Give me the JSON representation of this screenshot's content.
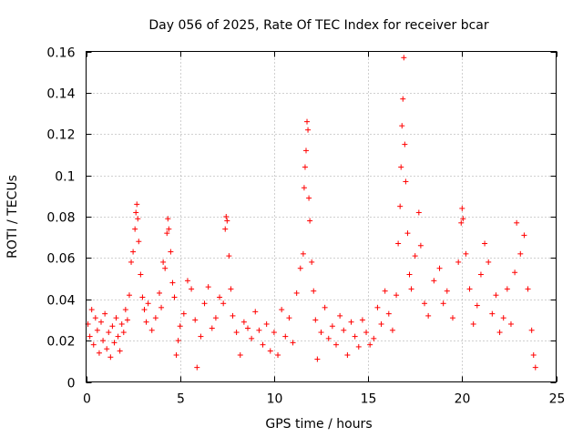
{
  "chart_data": {
    "type": "scatter",
    "title": "Day 056 of 2025, Rate Of TEC Index for receiver bcar",
    "xlabel": "GPS time / hours",
    "ylabel": "ROTI / TECUs",
    "xlim": [
      0,
      25
    ],
    "ylim": [
      0,
      0.16
    ],
    "xticks": [
      0,
      5,
      10,
      15,
      20,
      25
    ],
    "xtick_labels": [
      "0",
      "5",
      "10",
      "15",
      "20",
      "25"
    ],
    "yticks": [
      0,
      0.02,
      0.04,
      0.06,
      0.08,
      0.1,
      0.12,
      0.14,
      0.16
    ],
    "ytick_labels": [
      "0",
      "0.02",
      "0.04",
      "0.06",
      "0.08",
      "0.1",
      "0.12",
      "0.14",
      "0.16"
    ],
    "grid": true,
    "marker": "+",
    "color": "#ff0000",
    "series": [
      {
        "name": "ROTI",
        "points": [
          [
            0.1,
            0.028
          ],
          [
            0.2,
            0.022
          ],
          [
            0.3,
            0.035
          ],
          [
            0.4,
            0.018
          ],
          [
            0.5,
            0.031
          ],
          [
            0.6,
            0.025
          ],
          [
            0.7,
            0.014
          ],
          [
            0.8,
            0.029
          ],
          [
            0.9,
            0.02
          ],
          [
            1.0,
            0.033
          ],
          [
            1.1,
            0.016
          ],
          [
            1.2,
            0.024
          ],
          [
            1.3,
            0.012
          ],
          [
            1.4,
            0.027
          ],
          [
            1.5,
            0.019
          ],
          [
            1.6,
            0.031
          ],
          [
            1.7,
            0.022
          ],
          [
            1.8,
            0.015
          ],
          [
            1.9,
            0.028
          ],
          [
            2.0,
            0.024
          ],
          [
            2.1,
            0.035
          ],
          [
            2.2,
            0.03
          ],
          [
            2.3,
            0.042
          ],
          [
            2.4,
            0.058
          ],
          [
            2.5,
            0.063
          ],
          [
            2.6,
            0.074
          ],
          [
            2.65,
            0.082
          ],
          [
            2.7,
            0.086
          ],
          [
            2.75,
            0.079
          ],
          [
            2.8,
            0.068
          ],
          [
            2.9,
            0.052
          ],
          [
            3.0,
            0.041
          ],
          [
            3.1,
            0.035
          ],
          [
            3.2,
            0.029
          ],
          [
            3.3,
            0.038
          ],
          [
            3.5,
            0.025
          ],
          [
            3.7,
            0.031
          ],
          [
            3.9,
            0.043
          ],
          [
            4.0,
            0.036
          ],
          [
            4.1,
            0.058
          ],
          [
            4.2,
            0.055
          ],
          [
            4.3,
            0.072
          ],
          [
            4.35,
            0.079
          ],
          [
            4.4,
            0.074
          ],
          [
            4.5,
            0.063
          ],
          [
            4.6,
            0.048
          ],
          [
            4.7,
            0.041
          ],
          [
            4.8,
            0.013
          ],
          [
            4.9,
            0.02
          ],
          [
            5.0,
            0.027
          ],
          [
            5.2,
            0.033
          ],
          [
            5.4,
            0.049
          ],
          [
            5.6,
            0.045
          ],
          [
            5.8,
            0.03
          ],
          [
            5.9,
            0.007
          ],
          [
            6.1,
            0.022
          ],
          [
            6.3,
            0.038
          ],
          [
            6.5,
            0.046
          ],
          [
            6.7,
            0.026
          ],
          [
            6.9,
            0.031
          ],
          [
            7.1,
            0.041
          ],
          [
            7.3,
            0.038
          ],
          [
            7.4,
            0.074
          ],
          [
            7.45,
            0.08
          ],
          [
            7.5,
            0.078
          ],
          [
            7.6,
            0.061
          ],
          [
            7.7,
            0.045
          ],
          [
            7.8,
            0.032
          ],
          [
            8.0,
            0.024
          ],
          [
            8.2,
            0.013
          ],
          [
            8.4,
            0.029
          ],
          [
            8.6,
            0.026
          ],
          [
            8.8,
            0.021
          ],
          [
            9.0,
            0.034
          ],
          [
            9.2,
            0.025
          ],
          [
            9.4,
            0.018
          ],
          [
            9.6,
            0.028
          ],
          [
            9.8,
            0.015
          ],
          [
            10.0,
            0.024
          ],
          [
            10.2,
            0.013
          ],
          [
            10.4,
            0.035
          ],
          [
            10.6,
            0.022
          ],
          [
            10.8,
            0.031
          ],
          [
            11.0,
            0.019
          ],
          [
            11.2,
            0.043
          ],
          [
            11.4,
            0.055
          ],
          [
            11.55,
            0.062
          ],
          [
            11.6,
            0.094
          ],
          [
            11.65,
            0.104
          ],
          [
            11.7,
            0.112
          ],
          [
            11.75,
            0.126
          ],
          [
            11.8,
            0.122
          ],
          [
            11.85,
            0.089
          ],
          [
            11.9,
            0.078
          ],
          [
            12.0,
            0.058
          ],
          [
            12.1,
            0.044
          ],
          [
            12.2,
            0.03
          ],
          [
            12.3,
            0.011
          ],
          [
            12.5,
            0.024
          ],
          [
            12.7,
            0.036
          ],
          [
            12.9,
            0.021
          ],
          [
            13.1,
            0.027
          ],
          [
            13.3,
            0.018
          ],
          [
            13.5,
            0.032
          ],
          [
            13.7,
            0.025
          ],
          [
            13.9,
            0.013
          ],
          [
            14.1,
            0.029
          ],
          [
            14.3,
            0.022
          ],
          [
            14.5,
            0.017
          ],
          [
            14.7,
            0.03
          ],
          [
            14.9,
            0.024
          ],
          [
            15.1,
            0.018
          ],
          [
            15.3,
            0.021
          ],
          [
            15.5,
            0.036
          ],
          [
            15.7,
            0.028
          ],
          [
            15.9,
            0.044
          ],
          [
            16.1,
            0.033
          ],
          [
            16.3,
            0.025
          ],
          [
            16.5,
            0.042
          ],
          [
            16.6,
            0.067
          ],
          [
            16.7,
            0.085
          ],
          [
            16.75,
            0.104
          ],
          [
            16.8,
            0.124
          ],
          [
            16.85,
            0.137
          ],
          [
            16.9,
            0.157
          ],
          [
            16.95,
            0.115
          ],
          [
            17.0,
            0.097
          ],
          [
            17.1,
            0.072
          ],
          [
            17.2,
            0.052
          ],
          [
            17.3,
            0.045
          ],
          [
            17.5,
            0.061
          ],
          [
            17.7,
            0.082
          ],
          [
            17.8,
            0.066
          ],
          [
            18.0,
            0.038
          ],
          [
            18.2,
            0.032
          ],
          [
            18.5,
            0.049
          ],
          [
            18.8,
            0.055
          ],
          [
            19.0,
            0.038
          ],
          [
            19.2,
            0.044
          ],
          [
            19.5,
            0.031
          ],
          [
            19.8,
            0.058
          ],
          [
            19.95,
            0.077
          ],
          [
            20.0,
            0.084
          ],
          [
            20.05,
            0.079
          ],
          [
            20.2,
            0.062
          ],
          [
            20.4,
            0.045
          ],
          [
            20.6,
            0.028
          ],
          [
            20.8,
            0.037
          ],
          [
            21.0,
            0.052
          ],
          [
            21.2,
            0.067
          ],
          [
            21.4,
            0.058
          ],
          [
            21.6,
            0.033
          ],
          [
            21.8,
            0.042
          ],
          [
            22.0,
            0.024
          ],
          [
            22.2,
            0.031
          ],
          [
            22.4,
            0.045
          ],
          [
            22.6,
            0.028
          ],
          [
            22.8,
            0.053
          ],
          [
            22.9,
            0.077
          ],
          [
            23.1,
            0.062
          ],
          [
            23.3,
            0.071
          ],
          [
            23.5,
            0.045
          ],
          [
            23.7,
            0.025
          ],
          [
            23.8,
            0.013
          ],
          [
            23.9,
            0.007
          ]
        ]
      }
    ]
  }
}
